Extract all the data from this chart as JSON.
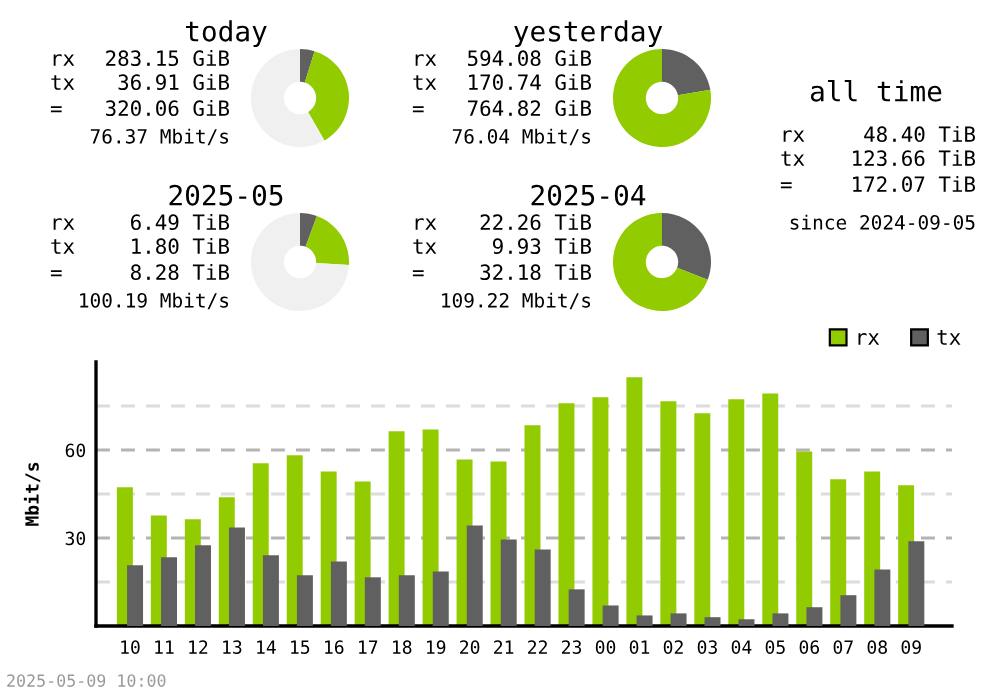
{
  "chart_data": [
    {
      "type": "donut",
      "title": "today",
      "categories": [
        null,
        null,
        null
      ],
      "values": [
        4.8,
        36.9,
        58.3
      ],
      "colors": [
        "#606060",
        "#92cc00",
        "#f0f0f0"
      ],
      "annotations": [
        "rx",
        "283.15 GiB",
        "tx",
        "36.91 GiB",
        "=",
        "320.06 GiB",
        "76.37 Mbit/s"
      ]
    },
    {
      "type": "donut",
      "title": "yesterday",
      "categories": [
        null,
        null
      ],
      "values": [
        22.3,
        77.7
      ],
      "colors": [
        "#606060",
        "#92cc00"
      ],
      "annotations": [
        "rx",
        "594.08 GiB",
        "tx",
        "170.74 GiB",
        "=",
        "764.82 GiB",
        "76.04 Mbit/s"
      ]
    },
    {
      "type": "other",
      "title": "all time",
      "annotations": [
        "rx",
        "48.40 TiB",
        "tx",
        "123.66 TiB",
        "=",
        "172.07 TiB",
        "since 2024-09-05"
      ]
    },
    {
      "type": "donut",
      "title": "2025-05",
      "categories": [
        null,
        null,
        null
      ],
      "values": [
        5.6,
        20.4,
        74.0
      ],
      "colors": [
        "#606060",
        "#92cc00",
        "#f0f0f0"
      ],
      "annotations": [
        "rx",
        "6.49 TiB",
        "tx",
        "1.80 TiB",
        "=",
        "8.28 TiB",
        "100.19 Mbit/s"
      ]
    },
    {
      "type": "donut",
      "title": "2025-04",
      "categories": [
        null,
        null
      ],
      "values": [
        30.9,
        69.1
      ],
      "colors": [
        "#606060",
        "#92cc00"
      ],
      "annotations": [
        "rx",
        "22.26 TiB",
        "tx",
        "9.93 TiB",
        "=",
        "32.18 TiB",
        "109.22 Mbit/s"
      ]
    },
    {
      "type": "bar",
      "ylabel": "Mbit/s",
      "categories": [
        "10",
        "11",
        "12",
        "13",
        "14",
        "15",
        "16",
        "17",
        "18",
        "19",
        "20",
        "21",
        "22",
        "23",
        "00",
        "01",
        "02",
        "03",
        "04",
        "05",
        "06",
        "07",
        "08",
        "09"
      ],
      "series": [
        {
          "name": "rx",
          "color": "#92cc00",
          "values": [
            47.3,
            37.7,
            36.4,
            43.9,
            55.5,
            58.2,
            52.7,
            49.3,
            66.4,
            67.0,
            56.8,
            56.1,
            68.4,
            75.9,
            78.0,
            84.8,
            76.6,
            72.5,
            77.3,
            79.3,
            59.5,
            50.0,
            52.7,
            48.0
          ]
        },
        {
          "name": "tx",
          "color": "#606060",
          "values": [
            20.7,
            23.4,
            27.5,
            33.6,
            24.1,
            17.3,
            22.0,
            16.6,
            17.3,
            18.6,
            34.3,
            29.5,
            26.1,
            12.5,
            7.0,
            3.6,
            4.3,
            3.0,
            2.3,
            4.3,
            6.4,
            10.5,
            19.3,
            28.9
          ]
        }
      ],
      "ylim": [
        0,
        90
      ],
      "yticks": [
        {
          "value": 15,
          "label": null
        },
        30,
        {
          "value": 45,
          "label": null
        },
        60,
        {
          "value": 75,
          "label": null
        }
      ],
      "grid": "y",
      "legend": "top right",
      "annotations": [
        "2025-05-09 10:00"
      ]
    }
  ]
}
